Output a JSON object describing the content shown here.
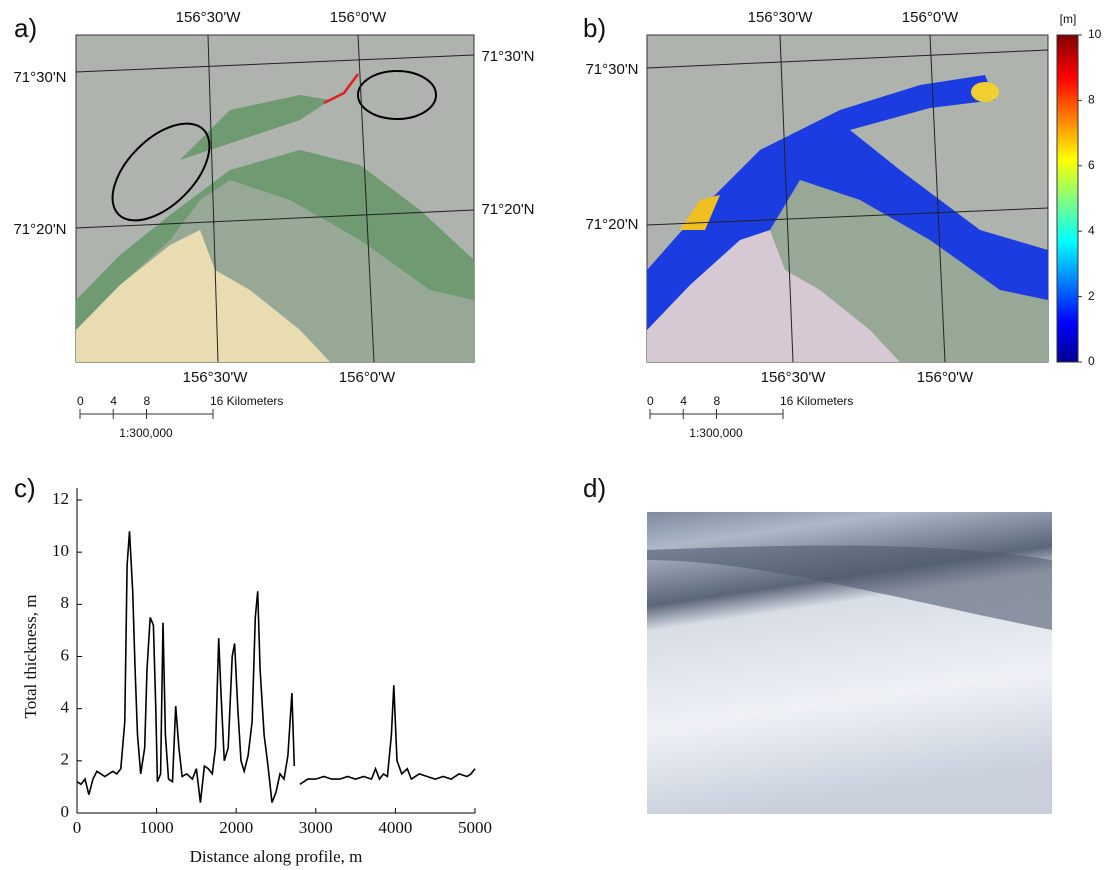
{
  "panel_a": {
    "label": "a)",
    "top_labels": [
      "156°30'W",
      "156°0'W"
    ],
    "bottom_labels": [
      "156°30'W",
      "156°0'W"
    ],
    "left_labels": [
      "71°30'N",
      "71°20'N"
    ],
    "right_labels": [
      "71°30'N",
      "71°20'N"
    ],
    "scale_bar": {
      "ticks": [
        0,
        4,
        8,
        {
          "value": 16,
          "label": "16 Kilometers"
        }
      ],
      "ratio": "1:300,000"
    }
  },
  "panel_b": {
    "label": "b)",
    "top_labels": [
      "156°30'W",
      "156°0'W"
    ],
    "bottom_labels": [
      "156°30'W",
      "156°0'W"
    ],
    "left_labels": [
      "71°30'N",
      "71°20'N"
    ],
    "scale_bar": {
      "ticks": [
        0,
        4,
        8,
        {
          "value": 16,
          "label": "16 Kilometers"
        }
      ],
      "ratio": "1:300,000"
    },
    "colorbar": {
      "label": "[m]",
      "lim": [
        0,
        10
      ],
      "ticks": [
        0,
        2,
        4,
        6,
        8,
        10
      ]
    }
  },
  "panel_c": {
    "label": "c)"
  },
  "panel_d": {
    "label": "d)"
  },
  "chart_data": {
    "type": "line",
    "x_label": "Distance along profile, m",
    "y_label": "Total thickness, m",
    "xlim": [
      0,
      5000
    ],
    "ylim": [
      0,
      12
    ],
    "xticks": [
      0,
      1000,
      2000,
      3000,
      4000,
      5000
    ],
    "yticks": [
      0,
      2,
      4,
      6,
      8,
      10,
      12
    ],
    "color": "#000000",
    "x": [
      0,
      50,
      100,
      150,
      200,
      250,
      300,
      350,
      400,
      450,
      500,
      550,
      600,
      630,
      660,
      700,
      730,
      760,
      800,
      850,
      880,
      920,
      960,
      990,
      1010,
      1050,
      1080,
      1110,
      1150,
      1200,
      1240,
      1280,
      1320,
      1380,
      1450,
      1500,
      1550,
      1600,
      1650,
      1700,
      1740,
      1780,
      1810,
      1850,
      1900,
      1950,
      1980,
      2020,
      2060,
      2100,
      2150,
      2200,
      2240,
      2270,
      2300,
      2350,
      2400,
      2450,
      2500,
      2550,
      2600,
      2650,
      2700,
      2730,
      2760,
      2800,
      2850,
      2900,
      3000,
      3100,
      3200,
      3300,
      3400,
      3500,
      3600,
      3700,
      3750,
      3800,
      3850,
      3900,
      3950,
      3980,
      4020,
      4080,
      4150,
      4200,
      4300,
      4400,
      4500,
      4600,
      4700,
      4800,
      4900,
      4950,
      5000
    ],
    "values": [
      1.2,
      1.1,
      1.3,
      0.7,
      1.3,
      1.6,
      1.5,
      1.4,
      1.5,
      1.6,
      1.5,
      1.7,
      3.5,
      9.5,
      10.8,
      8.5,
      5.5,
      3.0,
      1.5,
      2.5,
      5.5,
      7.5,
      7.2,
      4.0,
      1.2,
      1.5,
      7.3,
      3.0,
      1.3,
      1.2,
      4.1,
      2.5,
      1.4,
      1.5,
      1.3,
      1.7,
      0.4,
      1.8,
      1.7,
      1.5,
      2.5,
      6.7,
      4.5,
      2.0,
      2.5,
      6.0,
      6.5,
      4.0,
      2.0,
      1.6,
      2.2,
      3.5,
      7.5,
      8.5,
      5.5,
      3.0,
      1.8,
      0.4,
      0.8,
      1.5,
      1.3,
      2.2,
      4.6,
      1.8,
      null,
      1.1,
      1.2,
      1.3,
      1.3,
      1.4,
      1.3,
      1.3,
      1.4,
      1.3,
      1.4,
      1.3,
      1.7,
      1.3,
      1.5,
      1.4,
      3.0,
      4.9,
      2.0,
      1.5,
      1.7,
      1.3,
      1.5,
      1.4,
      1.3,
      1.4,
      1.3,
      1.5,
      1.4,
      1.5,
      1.7
    ]
  }
}
